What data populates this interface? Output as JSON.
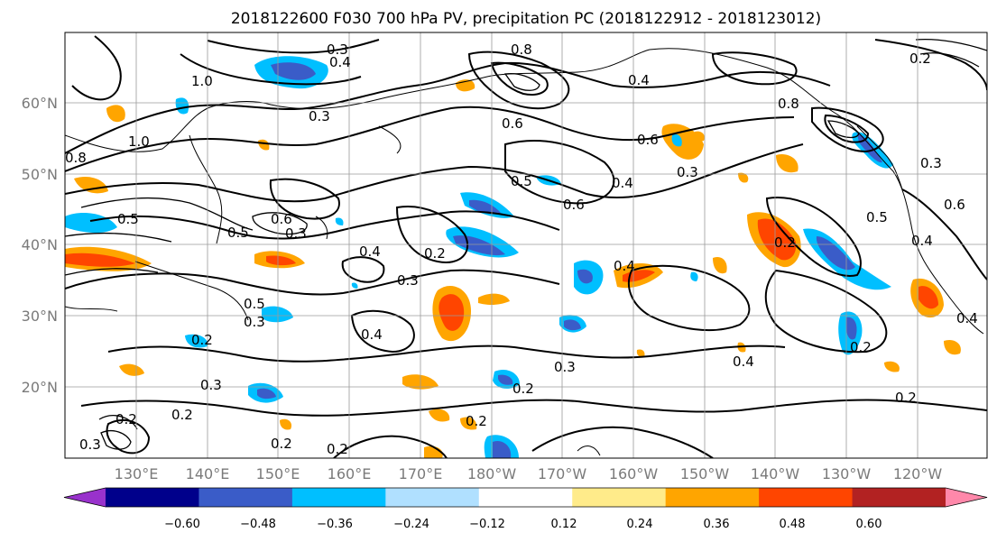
{
  "title": "2018122600 F030 700 hPa PV, precipitation PC (2018122912 - 2018123012)",
  "map": {
    "lat_labels": [
      "60°N",
      "50°N",
      "40°N",
      "30°N",
      "20°N"
    ],
    "lon_labels": [
      "130°E",
      "140°E",
      "150°E",
      "160°E",
      "170°E",
      "180°W",
      "170°W",
      "160°W",
      "150°W",
      "140°W",
      "130°W",
      "120°W"
    ]
  },
  "contour_labels": [
    "1.0",
    "1.0",
    "0.8",
    "0.6",
    "0.5",
    "0.3",
    "0.5",
    "0.3",
    "0.2",
    "0.3",
    "0.2",
    "0.2",
    "0.2",
    "0.3",
    "0.4",
    "0.4",
    "0.2",
    "0.3",
    "0.2",
    "0.2",
    "0.5",
    "0.6",
    "0.4",
    "0.4",
    "0.6",
    "0.8",
    "0.4",
    "0.3",
    "0.3",
    "0.4",
    "0.6",
    "0.8",
    "0.3",
    "0.2",
    "0.2",
    "0.5",
    "0.4",
    "0.2",
    "0.4",
    "0.3",
    "0.4",
    "0.2",
    "0.5",
    "0.6",
    "0.3",
    "0.2"
  ],
  "colorbar": {
    "ticks": [
      "−0.60",
      "−0.48",
      "−0.36",
      "−0.24",
      "−0.12",
      "0.12",
      "0.24",
      "0.36",
      "0.48",
      "0.60"
    ],
    "colors": [
      "#9932CC",
      "#00008B",
      "#3A5CC8",
      "#00BFFF",
      "#B0E0FF",
      "#FFFFFF",
      "#FFEB8A",
      "#FFA500",
      "#FF4500",
      "#B22222",
      "#FF88AA"
    ]
  }
}
